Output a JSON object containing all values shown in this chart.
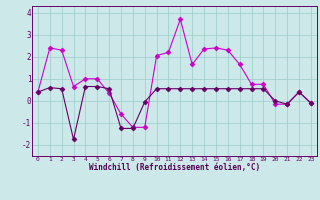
{
  "xlabel": "Windchill (Refroidissement éolien,°C)",
  "background_color": "#cce8e8",
  "line1_color": "#cc00cc",
  "line2_color": "#660066",
  "x": [
    0,
    1,
    2,
    3,
    4,
    5,
    6,
    7,
    8,
    9,
    10,
    11,
    12,
    13,
    14,
    15,
    16,
    17,
    18,
    19,
    20,
    21,
    22,
    23
  ],
  "line1_y": [
    0.4,
    2.4,
    2.3,
    0.65,
    1.0,
    1.0,
    0.35,
    -0.6,
    -1.2,
    -1.2,
    2.05,
    2.2,
    3.7,
    1.65,
    2.35,
    2.4,
    2.3,
    1.65,
    0.75,
    0.75,
    -0.15,
    -0.15,
    0.4,
    -0.1
  ],
  "line2_y": [
    0.4,
    0.6,
    0.55,
    -1.75,
    0.65,
    0.65,
    0.55,
    -1.25,
    -1.25,
    -0.05,
    0.55,
    0.55,
    0.55,
    0.55,
    0.55,
    0.55,
    0.55,
    0.55,
    0.55,
    0.55,
    0.0,
    -0.15,
    0.4,
    -0.1
  ],
  "ylim": [
    -2.5,
    4.3
  ],
  "xlim": [
    -0.5,
    23.5
  ],
  "yticks": [
    -2,
    -1,
    0,
    1,
    2,
    3,
    4
  ],
  "xticks": [
    0,
    1,
    2,
    3,
    4,
    5,
    6,
    7,
    8,
    9,
    10,
    11,
    12,
    13,
    14,
    15,
    16,
    17,
    18,
    19,
    20,
    21,
    22,
    23
  ],
  "grid_color": "#99cccc",
  "marker": "D",
  "markersize": 2.5,
  "linewidth": 0.8
}
